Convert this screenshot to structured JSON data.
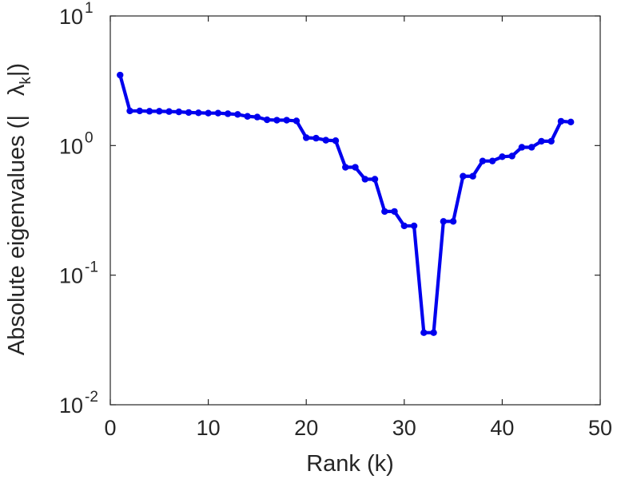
{
  "chart_data": {
    "type": "line",
    "title": "",
    "xlabel": "Rank (k)",
    "ylabel_main": "Absolute eigenvalues (|",
    "ylabel_symbol": "λ",
    "ylabel_subscript": "k",
    "ylabel_end": "|)",
    "xlim": [
      0,
      50
    ],
    "ylim": [
      0.01,
      10
    ],
    "yscale": "log",
    "grid": false,
    "legend": "none",
    "x_ticks": [
      "0",
      "10",
      "20",
      "30",
      "40",
      "50"
    ],
    "y_ticks": [
      {
        "base": "10",
        "exp": "-2"
      },
      {
        "base": "10",
        "exp": "-1"
      },
      {
        "base": "10",
        "exp": "0"
      },
      {
        "base": "10",
        "exp": "1"
      }
    ],
    "series": [
      {
        "color": "#0000ee",
        "x": [
          1,
          2,
          3,
          4,
          5,
          6,
          7,
          8,
          9,
          10,
          11,
          12,
          13,
          14,
          15,
          16,
          17,
          18,
          19,
          20,
          21,
          22,
          23,
          24,
          25,
          26,
          27,
          28,
          29,
          30,
          31,
          32,
          33,
          34,
          35,
          36,
          37,
          38,
          39,
          40,
          41,
          42,
          43,
          44,
          45,
          46,
          47
        ],
        "y": [
          3.5,
          1.85,
          1.85,
          1.84,
          1.84,
          1.83,
          1.82,
          1.8,
          1.79,
          1.78,
          1.78,
          1.76,
          1.74,
          1.68,
          1.66,
          1.58,
          1.57,
          1.57,
          1.55,
          1.15,
          1.14,
          1.1,
          1.09,
          0.68,
          0.68,
          0.55,
          0.55,
          0.31,
          0.31,
          0.24,
          0.24,
          0.036,
          0.036,
          0.26,
          0.26,
          0.58,
          0.58,
          0.76,
          0.76,
          0.82,
          0.83,
          0.97,
          0.97,
          1.08,
          1.08,
          1.54,
          1.52
        ]
      }
    ]
  }
}
